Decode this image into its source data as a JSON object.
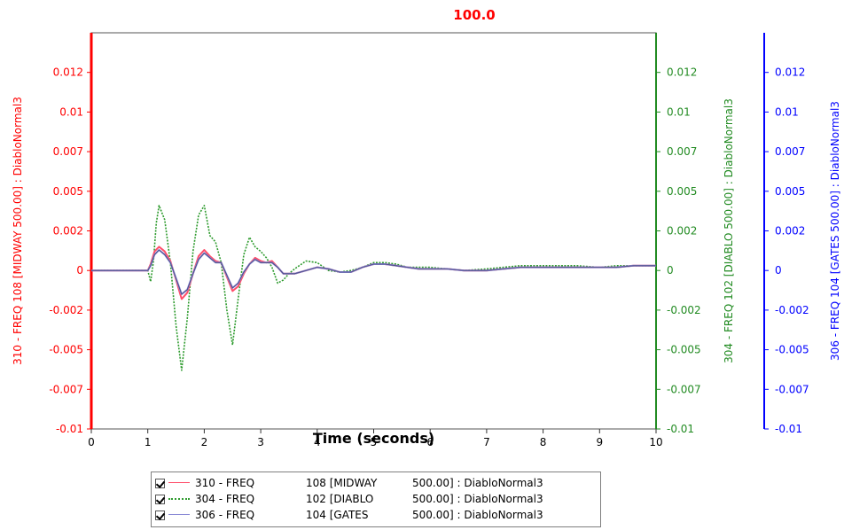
{
  "chart_data": {
    "type": "line",
    "title": "100.0",
    "title_color": "#ff0000",
    "xlabel": "Time (seconds)",
    "xlim": [
      0,
      10
    ],
    "x_ticks": [
      "0",
      "1",
      "2",
      "3",
      "4",
      "5",
      "6",
      "7",
      "8",
      "9",
      "10"
    ],
    "ylim": [
      -0.01,
      0.015
    ],
    "y_ticks": [
      "-0.01",
      "-0.007",
      "-0.005",
      "-0.002",
      "0",
      "0.002",
      "0.005",
      "0.007",
      "0.01",
      "0.012"
    ],
    "y_tick_values": [
      -0.01,
      -0.0075,
      -0.005,
      -0.0025,
      0,
      0.0025,
      0.005,
      0.0075,
      0.01,
      0.0125
    ],
    "grid": false,
    "legend_position": "bottom",
    "axes": [
      {
        "side": "left",
        "label": "310 - FREQ   108 [MIDWAY    500.00] : DiabloNormal3",
        "color": "#ff0000"
      },
      {
        "side": "right",
        "label": "304 - FREQ   102 [DIABLO    500.00] : DiabloNormal3",
        "color": "#228b22"
      },
      {
        "side": "right-outer",
        "label": "306 - FREQ   104 [GATES    500.00] : DiabloNormal3",
        "color": "#0000ff"
      }
    ],
    "series": [
      {
        "name": "310 - FREQ   108 [MIDWAY    500.00] : DiabloNormal3",
        "color": "#ff4d6a",
        "style": "solid",
        "x": [
          0,
          1.0,
          1.05,
          1.12,
          1.2,
          1.3,
          1.4,
          1.5,
          1.6,
          1.7,
          1.8,
          1.9,
          2.0,
          2.1,
          2.2,
          2.3,
          2.4,
          2.5,
          2.6,
          2.7,
          2.8,
          2.9,
          3.0,
          3.1,
          3.2,
          3.3,
          3.4,
          3.6,
          3.8,
          4.0,
          4.2,
          4.4,
          4.6,
          4.8,
          5.0,
          5.2,
          5.4,
          5.6,
          5.8,
          6.0,
          6.3,
          6.6,
          7.0,
          7.3,
          7.6,
          8.0,
          8.3,
          8.6,
          9.0,
          9.3,
          9.6,
          10.0
        ],
        "y": [
          0,
          0,
          0.0004,
          0.0012,
          0.0015,
          0.0012,
          0.0006,
          -0.0006,
          -0.0018,
          -0.0014,
          -0.0002,
          0.0009,
          0.0013,
          0.0009,
          0.0006,
          0.0005,
          -0.0004,
          -0.0013,
          -0.001,
          -0.0002,
          0.0004,
          0.0008,
          0.0006,
          0.0005,
          0.0006,
          0.0002,
          -0.0002,
          -0.0002,
          0.0,
          0.0002,
          0.0001,
          -0.0001,
          -0.0001,
          0.0002,
          0.0004,
          0.0004,
          0.0003,
          0.0002,
          0.0001,
          0.0001,
          0.0001,
          0.0,
          0.0,
          0.0001,
          0.0002,
          0.0002,
          0.0002,
          0.0002,
          0.0002,
          0.0002,
          0.0003,
          0.0003
        ]
      },
      {
        "name": "304 - FREQ   102 [DIABLO    500.00] : DiabloNormal3",
        "color": "#2e9b2e",
        "style": "dotted",
        "x": [
          0,
          1.0,
          1.05,
          1.1,
          1.15,
          1.2,
          1.3,
          1.4,
          1.5,
          1.6,
          1.7,
          1.8,
          1.9,
          2.0,
          2.1,
          2.2,
          2.3,
          2.4,
          2.5,
          2.6,
          2.7,
          2.8,
          2.9,
          3.0,
          3.1,
          3.2,
          3.3,
          3.4,
          3.5,
          3.6,
          3.8,
          4.0,
          4.2,
          4.4,
          4.6,
          4.8,
          5.0,
          5.2,
          5.4,
          5.6,
          5.8,
          6.0,
          6.3,
          6.6,
          7.0,
          7.3,
          7.6,
          8.0,
          8.3,
          8.6,
          9.0,
          9.3,
          9.6,
          10.0
        ],
        "y": [
          0,
          0,
          -0.0007,
          0.0006,
          0.003,
          0.0041,
          0.0032,
          0.0005,
          -0.0035,
          -0.0063,
          -0.003,
          0.0012,
          0.0035,
          0.0041,
          0.0022,
          0.0018,
          0.0005,
          -0.0025,
          -0.0047,
          -0.0018,
          0.001,
          0.0021,
          0.0015,
          0.0012,
          0.0008,
          0.0002,
          -0.0008,
          -0.0006,
          -0.0002,
          0.0001,
          0.0006,
          0.0005,
          0.0,
          -0.0001,
          0.0,
          0.0002,
          0.0005,
          0.0005,
          0.0004,
          0.0002,
          0.0002,
          0.0002,
          0.0001,
          0.0,
          0.0001,
          0.0002,
          0.0003,
          0.0003,
          0.0003,
          0.0003,
          0.0002,
          0.0003,
          0.0003,
          0.0003
        ]
      },
      {
        "name": "306 - FREQ   104 [GATES    500.00] : DiabloNormal3",
        "color": "#8a8ad6",
        "style": "solid",
        "x": [
          0,
          1.0,
          1.05,
          1.12,
          1.2,
          1.3,
          1.4,
          1.5,
          1.6,
          1.7,
          1.8,
          1.9,
          2.0,
          2.1,
          2.2,
          2.3,
          2.4,
          2.5,
          2.6,
          2.7,
          2.8,
          2.9,
          3.0,
          3.1,
          3.2,
          3.3,
          3.4,
          3.6,
          3.8,
          4.0,
          4.2,
          4.4,
          4.6,
          4.8,
          5.0,
          5.2,
          5.4,
          5.6,
          5.8,
          6.0,
          6.3,
          6.6,
          7.0,
          7.3,
          7.6,
          8.0,
          8.3,
          8.6,
          9.0,
          9.3,
          9.6,
          10.0
        ],
        "y": [
          0,
          0,
          0.0003,
          0.001,
          0.0013,
          0.001,
          0.0005,
          -0.0005,
          -0.0015,
          -0.0012,
          -0.0002,
          0.0007,
          0.0011,
          0.0008,
          0.0005,
          0.0005,
          -0.0003,
          -0.0011,
          -0.0008,
          -0.0001,
          0.0004,
          0.0007,
          0.0005,
          0.0005,
          0.0005,
          0.0002,
          -0.0002,
          -0.0002,
          0.0,
          0.0002,
          0.0001,
          -0.0001,
          -0.0001,
          0.0002,
          0.0004,
          0.0004,
          0.0003,
          0.0002,
          0.0001,
          0.0001,
          0.0001,
          0.0,
          0.0,
          0.0001,
          0.0002,
          0.0002,
          0.0002,
          0.0002,
          0.0002,
          0.0002,
          0.0003,
          0.0003
        ]
      }
    ]
  },
  "legend": {
    "items": [
      {
        "c1": "310 - FREQ",
        "c2": "108 [MIDWAY",
        "c3": "500.00] : DiabloNormal3",
        "color": "#ff4d6a",
        "style": "solid"
      },
      {
        "c1": "304 - FREQ",
        "c2": "102 [DIABLO",
        "c3": "500.00] : DiabloNormal3",
        "color": "#2e9b2e",
        "style": "dotted"
      },
      {
        "c1": "306 - FREQ",
        "c2": "104 [GATES",
        "c3": "500.00] : DiabloNormal3",
        "color": "#8a8ad6",
        "style": "solid"
      }
    ]
  }
}
